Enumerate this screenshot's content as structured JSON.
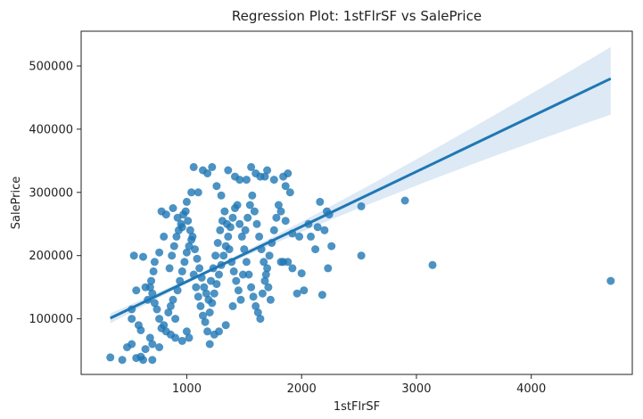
{
  "chart_data": {
    "type": "scatter",
    "title": "Regression Plot: 1stFlrSF vs SalePrice",
    "xlabel": "1stFlrSF",
    "ylabel": "SalePrice",
    "xlim": [
      80,
      4880
    ],
    "ylim": [
      12000,
      555000
    ],
    "xticks": [
      1000,
      2000,
      3000,
      4000
    ],
    "yticks": [
      100000,
      200000,
      300000,
      400000,
      500000
    ],
    "grid": false,
    "legend": "none",
    "colors": {
      "points": "#1f77b4",
      "line": "#1f77b4",
      "band": "#c6dbef"
    },
    "regression": {
      "x": [
        334,
        4692
      ],
      "y": [
        101000,
        480000
      ],
      "ci_lower_at_end": 423000,
      "ci_upper_at_end": 530000
    },
    "points": [
      [
        334,
        39000
      ],
      [
        438,
        35000
      ],
      [
        520,
        60000
      ],
      [
        480,
        55000
      ],
      [
        560,
        38000
      ],
      [
        600,
        40000
      ],
      [
        620,
        35000
      ],
      [
        700,
        35000
      ],
      [
        640,
        52000
      ],
      [
        700,
        60000
      ],
      [
        760,
        55000
      ],
      [
        540,
        200000
      ],
      [
        620,
        198000
      ],
      [
        640,
        150000
      ],
      [
        560,
        145000
      ],
      [
        520,
        100000
      ],
      [
        520,
        115000
      ],
      [
        580,
        90000
      ],
      [
        600,
        82000
      ],
      [
        680,
        70000
      ],
      [
        660,
        130000
      ],
      [
        690,
        160000
      ],
      [
        710,
        175000
      ],
      [
        720,
        190000
      ],
      [
        760,
        205000
      ],
      [
        800,
        230000
      ],
      [
        780,
        270000
      ],
      [
        820,
        265000
      ],
      [
        880,
        275000
      ],
      [
        920,
        260000
      ],
      [
        960,
        245000
      ],
      [
        1000,
        285000
      ],
      [
        1040,
        300000
      ],
      [
        1060,
        340000
      ],
      [
        1100,
        300000
      ],
      [
        1140,
        335000
      ],
      [
        1180,
        330000
      ],
      [
        1220,
        340000
      ],
      [
        1260,
        310000
      ],
      [
        1300,
        295000
      ],
      [
        1360,
        335000
      ],
      [
        1420,
        325000
      ],
      [
        1460,
        320000
      ],
      [
        1520,
        320000
      ],
      [
        1560,
        340000
      ],
      [
        1600,
        330000
      ],
      [
        1640,
        325000
      ],
      [
        1680,
        325000
      ],
      [
        1700,
        335000
      ],
      [
        1760,
        320000
      ],
      [
        1840,
        325000
      ],
      [
        1880,
        330000
      ],
      [
        1860,
        310000
      ],
      [
        1900,
        300000
      ],
      [
        1820,
        270000
      ],
      [
        1860,
        255000
      ],
      [
        1920,
        235000
      ],
      [
        1980,
        230000
      ],
      [
        2000,
        172000
      ],
      [
        1920,
        180000
      ],
      [
        1960,
        140000
      ],
      [
        2020,
        145000
      ],
      [
        2060,
        250000
      ],
      [
        2080,
        230000
      ],
      [
        2120,
        210000
      ],
      [
        2140,
        245000
      ],
      [
        2160,
        285000
      ],
      [
        2200,
        240000
      ],
      [
        2220,
        270000
      ],
      [
        2240,
        265000
      ],
      [
        2260,
        215000
      ],
      [
        2180,
        138000
      ],
      [
        2230,
        180000
      ],
      [
        2520,
        278000
      ],
      [
        2520,
        200000
      ],
      [
        2900,
        287000
      ],
      [
        3140,
        185000
      ],
      [
        4692,
        160000
      ],
      [
        800,
        90000
      ],
      [
        840,
        110000
      ],
      [
        860,
        120000
      ],
      [
        880,
        130000
      ],
      [
        900,
        100000
      ],
      [
        920,
        145000
      ],
      [
        940,
        160000
      ],
      [
        960,
        175000
      ],
      [
        980,
        190000
      ],
      [
        1000,
        205000
      ],
      [
        1020,
        215000
      ],
      [
        1040,
        225000
      ],
      [
        1060,
        170000
      ],
      [
        1080,
        150000
      ],
      [
        1100,
        135000
      ],
      [
        1120,
        120000
      ],
      [
        1140,
        105000
      ],
      [
        1160,
        95000
      ],
      [
        1180,
        80000
      ],
      [
        1200,
        110000
      ],
      [
        1220,
        125000
      ],
      [
        1240,
        140000
      ],
      [
        1260,
        155000
      ],
      [
        1280,
        170000
      ],
      [
        1300,
        185000
      ],
      [
        1320,
        200000
      ],
      [
        1340,
        215000
      ],
      [
        1360,
        230000
      ],
      [
        1380,
        245000
      ],
      [
        1400,
        260000
      ],
      [
        1420,
        275000
      ],
      [
        1440,
        280000
      ],
      [
        1460,
        250000
      ],
      [
        1480,
        230000
      ],
      [
        1500,
        210000
      ],
      [
        1520,
        190000
      ],
      [
        1540,
        170000
      ],
      [
        1560,
        150000
      ],
      [
        1580,
        135000
      ],
      [
        1600,
        120000
      ],
      [
        1620,
        110000
      ],
      [
        1640,
        100000
      ],
      [
        1660,
        140000
      ],
      [
        1680,
        160000
      ],
      [
        1700,
        180000
      ],
      [
        1720,
        200000
      ],
      [
        1740,
        220000
      ],
      [
        1760,
        240000
      ],
      [
        1780,
        260000
      ],
      [
        1800,
        280000
      ],
      [
        1820,
        190000
      ],
      [
        1840,
        190000
      ],
      [
        1880,
        190000
      ],
      [
        1200,
        60000
      ],
      [
        1240,
        75000
      ],
      [
        1280,
        80000
      ],
      [
        1340,
        90000
      ],
      [
        1400,
        120000
      ],
      [
        1000,
        80000
      ],
      [
        1020,
        70000
      ],
      [
        960,
        65000
      ],
      [
        900,
        70000
      ],
      [
        860,
        75000
      ],
      [
        820,
        80000
      ],
      [
        780,
        85000
      ],
      [
        760,
        100000
      ],
      [
        740,
        115000
      ],
      [
        720,
        125000
      ],
      [
        700,
        140000
      ],
      [
        680,
        150000
      ],
      [
        850,
        180000
      ],
      [
        870,
        200000
      ],
      [
        890,
        215000
      ],
      [
        910,
        230000
      ],
      [
        930,
        240000
      ],
      [
        950,
        250000
      ],
      [
        970,
        265000
      ],
      [
        990,
        270000
      ],
      [
        1010,
        255000
      ],
      [
        1030,
        240000
      ],
      [
        1050,
        230000
      ],
      [
        1070,
        210000
      ],
      [
        1090,
        195000
      ],
      [
        1110,
        180000
      ],
      [
        1130,
        165000
      ],
      [
        1150,
        150000
      ],
      [
        1170,
        140000
      ],
      [
        1190,
        130000
      ],
      [
        1210,
        160000
      ],
      [
        1230,
        180000
      ],
      [
        1250,
        200000
      ],
      [
        1270,
        220000
      ],
      [
        1290,
        240000
      ],
      [
        1310,
        255000
      ],
      [
        1330,
        270000
      ],
      [
        1350,
        250000
      ],
      [
        1370,
        210000
      ],
      [
        1390,
        190000
      ],
      [
        1410,
        175000
      ],
      [
        1430,
        160000
      ],
      [
        1450,
        145000
      ],
      [
        1470,
        130000
      ],
      [
        1490,
        170000
      ],
      [
        1510,
        240000
      ],
      [
        1530,
        260000
      ],
      [
        1550,
        280000
      ],
      [
        1570,
        295000
      ],
      [
        1590,
        270000
      ],
      [
        1610,
        250000
      ],
      [
        1630,
        230000
      ],
      [
        1650,
        210000
      ],
      [
        1670,
        190000
      ],
      [
        1690,
        170000
      ],
      [
        1710,
        150000
      ],
      [
        1730,
        130000
      ]
    ]
  }
}
